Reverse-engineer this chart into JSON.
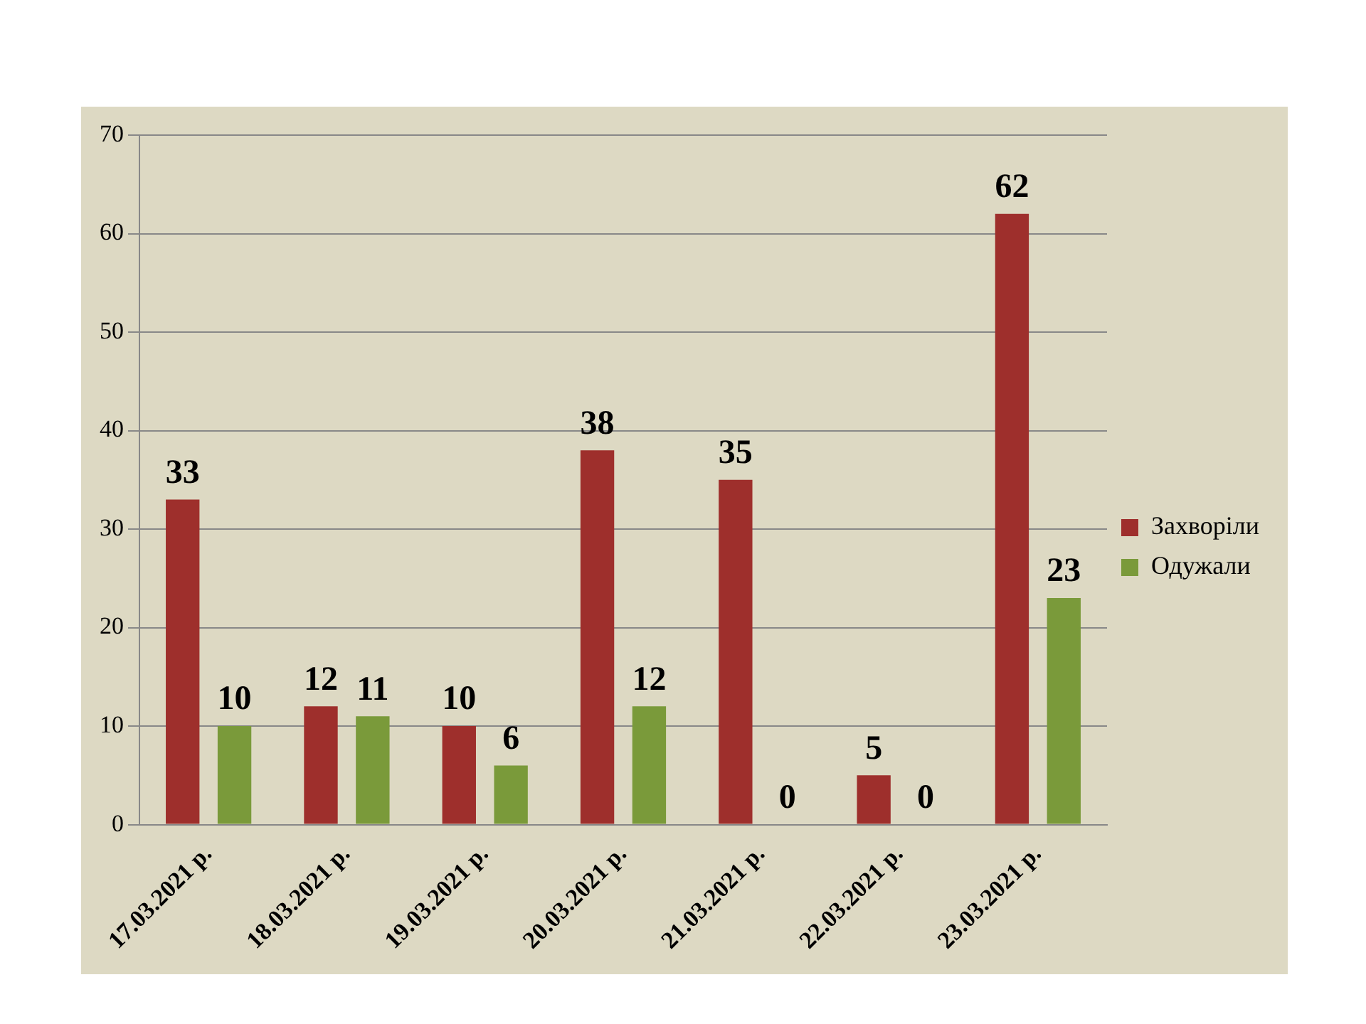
{
  "chart_data": {
    "type": "bar",
    "categories": [
      "17.03.2021 р.",
      "18.03.2021 р.",
      "19.03.2021 р.",
      "20.03.2021 р.",
      "21.03.2021 р.",
      "22.03.2021 р.",
      "23.03.2021 р."
    ],
    "series": [
      {
        "name": "Захворіли",
        "color": "#9e2f2c",
        "values": [
          33,
          12,
          10,
          38,
          35,
          5,
          62
        ]
      },
      {
        "name": "Одужали",
        "color": "#7a9a3a",
        "values": [
          10,
          11,
          6,
          12,
          0,
          0,
          23
        ]
      }
    ],
    "ylim": [
      0,
      70
    ],
    "yticks": [
      0,
      10,
      20,
      30,
      40,
      50,
      60,
      70
    ],
    "grid": "y",
    "legend": "right",
    "data_labels": true
  }
}
